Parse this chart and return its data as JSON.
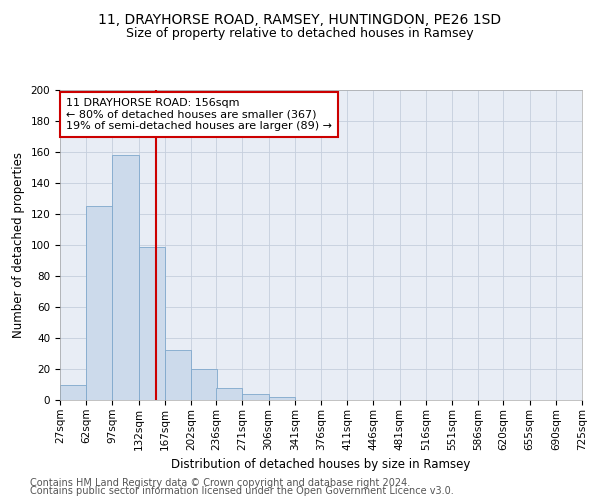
{
  "title1": "11, DRAYHORSE ROAD, RAMSEY, HUNTINGDON, PE26 1SD",
  "title2": "Size of property relative to detached houses in Ramsey",
  "xlabel": "Distribution of detached houses by size in Ramsey",
  "ylabel": "Number of detached properties",
  "bar_bins": [
    27,
    62,
    97,
    132,
    167,
    202,
    236,
    271,
    306,
    341,
    376,
    411,
    446,
    481,
    516,
    551,
    586,
    620,
    655,
    690,
    725
  ],
  "bar_heights": [
    10,
    125,
    158,
    99,
    32,
    20,
    8,
    4,
    2,
    0,
    0,
    0,
    0,
    0,
    0,
    0,
    0,
    0,
    0,
    0
  ],
  "bar_color": "#ccdaeb",
  "bar_edge_color": "#7fa8cc",
  "vline_x": 156,
  "vline_color": "#cc0000",
  "annotation_text": "11 DRAYHORSE ROAD: 156sqm\n← 80% of detached houses are smaller (367)\n19% of semi-detached houses are larger (89) →",
  "annotation_box_color": "#cc0000",
  "ylim": [
    0,
    200
  ],
  "yticks": [
    0,
    20,
    40,
    60,
    80,
    100,
    120,
    140,
    160,
    180,
    200
  ],
  "tick_labels": [
    "27sqm",
    "62sqm",
    "97sqm",
    "132sqm",
    "167sqm",
    "202sqm",
    "236sqm",
    "271sqm",
    "306sqm",
    "341sqm",
    "376sqm",
    "411sqm",
    "446sqm",
    "481sqm",
    "516sqm",
    "551sqm",
    "586sqm",
    "620sqm",
    "655sqm",
    "690sqm",
    "725sqm"
  ],
  "footer1": "Contains HM Land Registry data © Crown copyright and database right 2024.",
  "footer2": "Contains public sector information licensed under the Open Government Licence v3.0.",
  "bg_color": "#ffffff",
  "plot_bg_color": "#e8edf5",
  "grid_color": "#c5cedd",
  "title1_fontsize": 10,
  "title2_fontsize": 9,
  "annotation_fontsize": 8,
  "axis_label_fontsize": 8.5,
  "tick_fontsize": 7.5,
  "footer_fontsize": 7
}
